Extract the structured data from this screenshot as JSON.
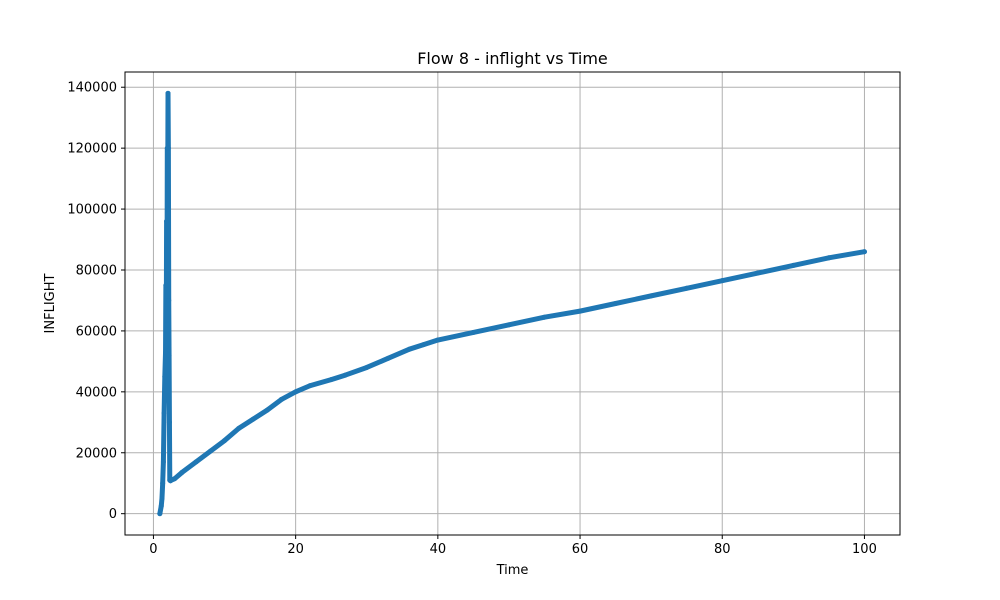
{
  "chart_data": {
    "type": "line",
    "title": "Flow 8 - inflight vs Time",
    "xlabel": "Time",
    "ylabel": "INFLIGHT",
    "xlim": [
      -4,
      105
    ],
    "ylim": [
      -7000,
      145000
    ],
    "xticks": [
      0,
      20,
      40,
      60,
      80,
      100
    ],
    "yticks": [
      0,
      20000,
      40000,
      60000,
      80000,
      100000,
      120000,
      140000
    ],
    "xtick_labels": [
      "0",
      "20",
      "40",
      "60",
      "80",
      "100"
    ],
    "ytick_labels": [
      "0",
      "20000",
      "40000",
      "60000",
      "80000",
      "100000",
      "120000",
      "140000"
    ],
    "grid": true,
    "series": [
      {
        "color": "#1f77b4",
        "x": [
          0.9,
          1.1,
          1.2,
          1.3,
          1.4,
          1.5,
          1.6,
          1.7,
          1.75,
          1.8,
          1.85,
          1.9,
          1.95,
          2.0,
          2.05,
          2.1,
          2.15,
          2.2,
          2.25,
          2.3,
          2.4,
          2.5,
          3.0,
          4.0,
          6.0,
          8.0,
          10.0,
          12.0,
          14.0,
          16.0,
          18.0,
          20.0,
          22.0,
          25.0,
          27.0,
          30.0,
          33.0,
          36.0,
          38.0,
          40.0,
          45.0,
          50.0,
          55.0,
          60.0,
          65.0,
          70.0,
          75.0,
          80.0,
          85.0,
          90.0,
          95.0,
          100.0
        ],
        "y": [
          0,
          2500,
          5000,
          10000,
          17000,
          33000,
          45000,
          53000,
          75000,
          55000,
          96000,
          62000,
          120000,
          100000,
          138000,
          120000,
          70000,
          52000,
          30000,
          11000,
          10800,
          11000,
          11500,
          13500,
          17000,
          20500,
          24000,
          28000,
          31000,
          34000,
          37500,
          40000,
          42000,
          44000,
          45500,
          48000,
          51000,
          54000,
          55500,
          57000,
          59500,
          62000,
          64500,
          66500,
          69000,
          71500,
          74000,
          76500,
          79000,
          81500,
          84000,
          86000
        ]
      }
    ]
  }
}
